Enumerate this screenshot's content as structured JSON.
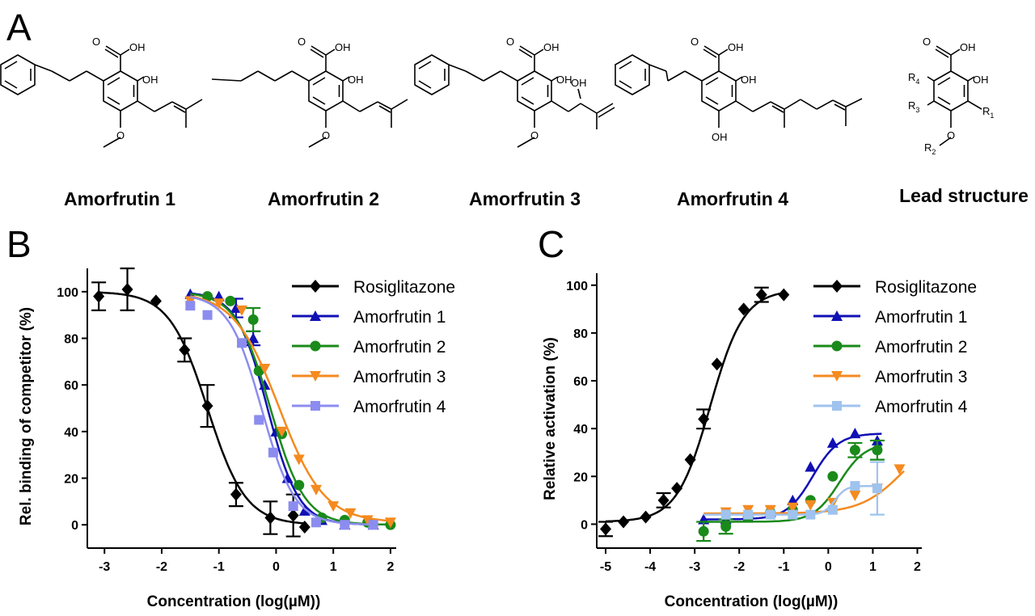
{
  "panel_a": {
    "letter": "A",
    "compound_names": [
      "Amorfrutin 1",
      "Amorfrutin 2",
      "Amorfrutin 3",
      "Amorfrutin 4",
      "Lead structure"
    ],
    "atom_labels": {
      "cooh": "OH",
      "oh": "OH",
      "r1": "R",
      "r1_sub": "1",
      "r2": "R",
      "r2_sub": "2",
      "r3": "R",
      "r3_sub": "3",
      "r4": "R",
      "r4_sub": "4"
    }
  },
  "chart_data": [
    {
      "type": "scatter",
      "letter": "B",
      "xlabel": "Concentration (log(µM))",
      "ylabel": "Rel. binding of competitor (%)",
      "xlim": [
        -3.3,
        2.1
      ],
      "ylim": [
        -10,
        110
      ],
      "xticks": [
        -3,
        -2,
        -1,
        0,
        1,
        2
      ],
      "yticks": [
        0,
        20,
        40,
        60,
        80,
        100
      ],
      "legend_position": "top-right",
      "series": [
        {
          "name": "Rosiglitazone",
          "color": "#000000",
          "marker": "diamond",
          "x": [
            -3.1,
            -2.6,
            -2.1,
            -1.6,
            -1.2,
            -0.7,
            -0.1,
            0.3,
            0.5
          ],
          "y": [
            98,
            101,
            96,
            75,
            51,
            13,
            3,
            4,
            -1
          ],
          "err": [
            6,
            9,
            0,
            5,
            9,
            5,
            7,
            9,
            0
          ],
          "fit": {
            "bottom": 0,
            "top": 100,
            "logec50": -1.2,
            "hill": -1.3,
            "xmin": -3.1,
            "xmax": 0.5
          }
        },
        {
          "name": "Amorfrutin 1",
          "color": "#1010b4",
          "marker": "triangle-up",
          "x": [
            -1.5,
            -1.0,
            -0.7,
            -0.4,
            -0.2,
            0.0,
            0.2,
            0.5,
            0.8,
            1.2,
            1.7
          ],
          "y": [
            99,
            98,
            93,
            80,
            60,
            40,
            20,
            6,
            2,
            0,
            0
          ],
          "err": [
            0,
            0,
            4,
            3,
            0,
            0,
            0,
            0,
            0,
            0,
            0
          ],
          "fit": {
            "bottom": 0,
            "top": 100,
            "logec50": -0.15,
            "hill": -1.6,
            "xmin": -1.5,
            "xmax": 1.7
          }
        },
        {
          "name": "Amorfrutin 2",
          "color": "#1a8a1a",
          "marker": "circle",
          "x": [
            -1.2,
            -0.8,
            -0.4,
            -0.3,
            0.1,
            0.4,
            0.8,
            1.2,
            1.6,
            2.0
          ],
          "y": [
            98,
            96,
            88,
            66,
            39,
            17,
            3,
            2,
            1,
            0
          ],
          "err": [
            0,
            0,
            5,
            0,
            0,
            0,
            0,
            0,
            0,
            0
          ],
          "fit": {
            "bottom": 0,
            "top": 100,
            "logec50": -0.1,
            "hill": -1.45,
            "xmin": -1.5,
            "xmax": 2.0
          }
        },
        {
          "name": "Amorfrutin 3",
          "color": "#f58a1f",
          "marker": "triangle-down",
          "x": [
            -1.5,
            -1.0,
            -0.6,
            -0.2,
            0.1,
            0.4,
            0.7,
            1.0,
            1.3,
            1.6,
            2.0
          ],
          "y": [
            96,
            95,
            92,
            67,
            40,
            28,
            15,
            8,
            5,
            2,
            1
          ],
          "err": [
            0,
            0,
            0,
            0,
            0,
            0,
            0,
            0,
            0,
            0,
            0
          ],
          "fit": {
            "bottom": 1,
            "top": 100,
            "logec50": 0.05,
            "hill": -1.1,
            "xmin": -1.5,
            "xmax": 2.0
          }
        },
        {
          "name": "Amorfrutin 4",
          "color": "#8c8cf0",
          "marker": "square",
          "x": [
            -1.5,
            -1.2,
            -0.6,
            -0.3,
            -0.05,
            0.3,
            0.7,
            1.2,
            1.7
          ],
          "y": [
            94,
            90,
            78,
            45,
            31,
            8,
            1,
            0,
            0
          ],
          "err": [
            0,
            0,
            0,
            0,
            0,
            0,
            0,
            0,
            0
          ],
          "fit": {
            "bottom": 0,
            "top": 99,
            "logec50": -0.25,
            "hill": -1.5,
            "xmin": -1.5,
            "xmax": 1.7
          }
        }
      ]
    },
    {
      "type": "scatter",
      "letter": "C",
      "xlabel": "Concentration (log(µM))",
      "ylabel": "Relative activation  (%)",
      "xlim": [
        -5.2,
        2.1
      ],
      "ylim": [
        -10,
        105
      ],
      "xticks": [
        -5,
        -4,
        -3,
        -2,
        -1,
        0,
        1,
        2
      ],
      "yticks": [
        0,
        20,
        40,
        60,
        80,
        100
      ],
      "legend_position": "top-right",
      "series": [
        {
          "name": "Rosiglitazone",
          "color": "#000000",
          "marker": "diamond",
          "x": [
            -5.0,
            -4.6,
            -4.1,
            -3.7,
            -3.4,
            -3.1,
            -2.8,
            -2.5,
            -1.9,
            -1.5,
            -1.0
          ],
          "y": [
            -2,
            1,
            3,
            10,
            15,
            27,
            44,
            67,
            90,
            96,
            96
          ],
          "err": [
            3,
            0,
            0,
            3,
            0,
            0,
            4,
            0,
            0,
            3,
            0
          ],
          "fit": {
            "bottom": 1,
            "top": 98,
            "logec50": -2.65,
            "hill": 1.15,
            "xmin": -5.0,
            "xmax": -1.0
          }
        },
        {
          "name": "Amorfrutin 1",
          "color": "#1010b4",
          "marker": "triangle-up",
          "x": [
            -2.8,
            -2.3,
            -1.8,
            -1.3,
            -0.8,
            -0.4,
            0.1,
            0.6,
            1.1
          ],
          "y": [
            2,
            2,
            3,
            5,
            10,
            24,
            34,
            38,
            35
          ],
          "err": [
            0,
            0,
            0,
            0,
            0,
            0,
            0,
            0,
            0
          ],
          "fit": {
            "bottom": 2,
            "top": 38,
            "logec50": -0.35,
            "hill": 1.5,
            "xmin": -2.8,
            "xmax": 1.2
          }
        },
        {
          "name": "Amorfrutin 2",
          "color": "#1a8a1a",
          "marker": "circle",
          "x": [
            -2.8,
            -2.3,
            -1.8,
            -1.3,
            -0.8,
            -0.4,
            0.1,
            0.6,
            1.1
          ],
          "y": [
            -3,
            -1,
            3,
            5,
            6,
            10,
            20,
            31,
            31
          ],
          "err": [
            4,
            3,
            0,
            0,
            0,
            0,
            0,
            3,
            4
          ],
          "fit": {
            "bottom": 1,
            "top": 34,
            "logec50": 0.25,
            "hill": 1.5,
            "xmin": -2.8,
            "xmax": 1.2
          }
        },
        {
          "name": "Amorfrutin 3",
          "color": "#f58a1f",
          "marker": "triangle-down",
          "x": [
            -2.3,
            -1.8,
            -1.3,
            -0.8,
            -0.4,
            0.1,
            0.6,
            1.1,
            1.6
          ],
          "y": [
            5,
            6,
            6,
            7,
            8,
            9,
            12,
            15,
            23
          ],
          "err": [
            0,
            0,
            0,
            0,
            0,
            0,
            0,
            0,
            0
          ],
          "fit": {
            "bottom": 4.5,
            "top": 40,
            "logec50": 1.7,
            "hill": 0.9,
            "xmin": -2.8,
            "xmax": 1.7
          }
        },
        {
          "name": "Amorfrutin 4",
          "color": "#9fc3ee",
          "marker": "square",
          "x": [
            -2.3,
            -1.8,
            -1.3,
            -0.8,
            -0.4,
            0.1,
            0.6,
            1.1
          ],
          "y": [
            4,
            4,
            4,
            4,
            4,
            6,
            16,
            15
          ],
          "err": [
            0,
            0,
            0,
            0,
            0,
            0,
            0,
            11
          ],
          "fit": {
            "bottom": 4,
            "top": 16,
            "logec50": 0.15,
            "hill": 3.5,
            "xmin": -2.8,
            "xmax": 1.2
          }
        }
      ]
    }
  ]
}
